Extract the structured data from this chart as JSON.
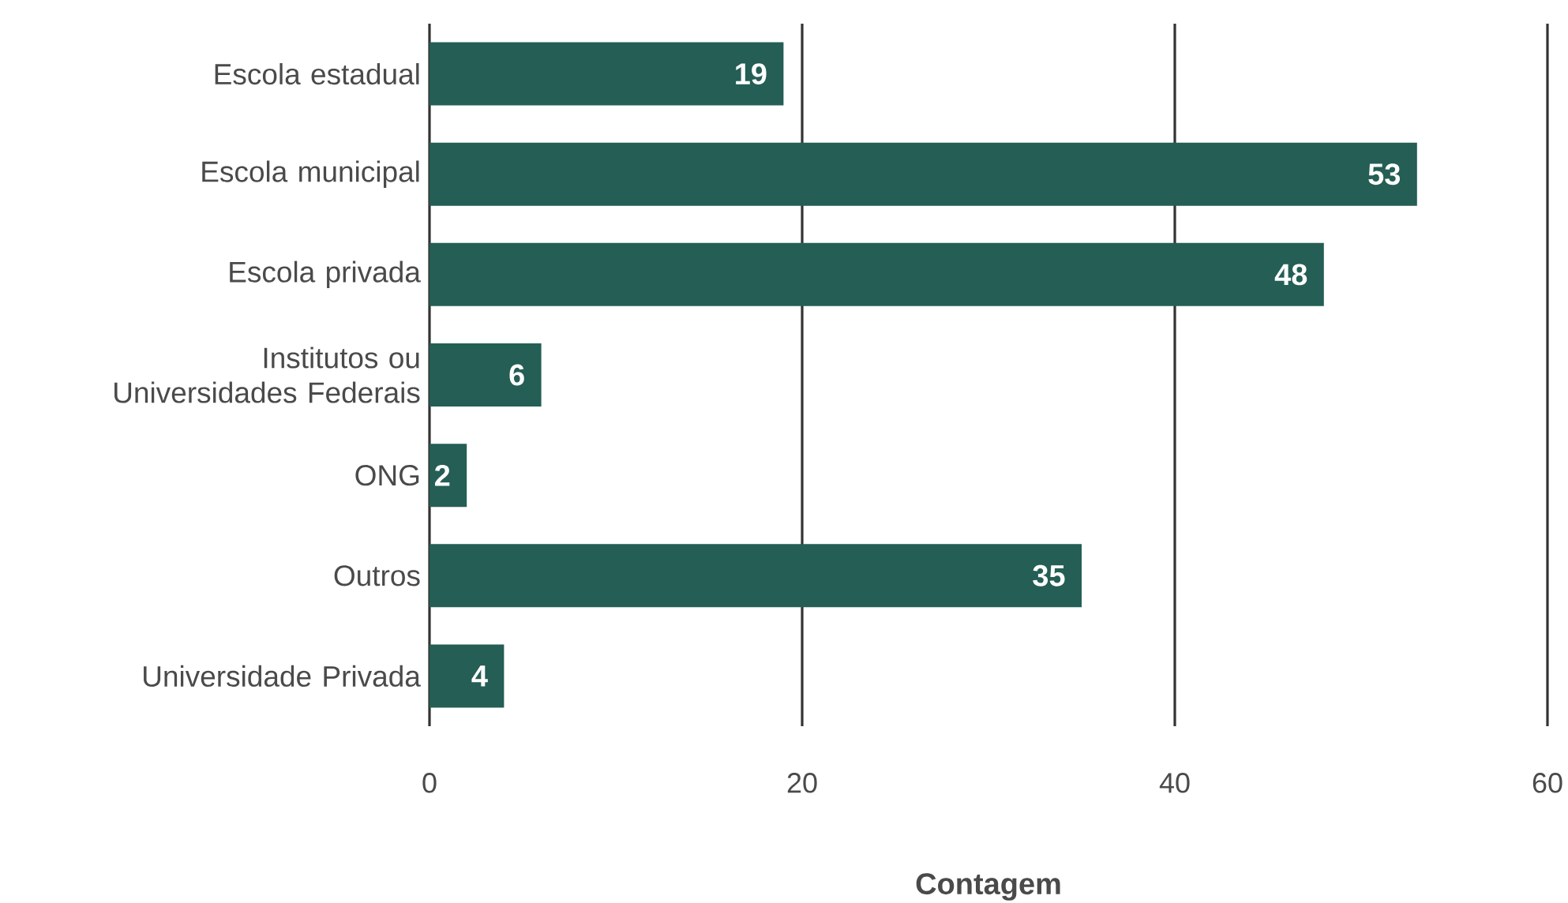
{
  "chart_data": {
    "type": "bar",
    "orientation": "horizontal",
    "xlabel": "Contagem",
    "categories": [
      "Escola estadual",
      "Escola municipal",
      "Escola privada",
      "Institutos ou Universidades Federais",
      "ONG",
      "Outros",
      "Universidade Privada"
    ],
    "values": [
      19,
      53,
      48,
      6,
      2,
      35,
      4
    ],
    "color": "#245e55",
    "xlim": [
      0,
      60
    ],
    "xticks": [
      0,
      20,
      40,
      60
    ],
    "grid": "x",
    "data_labels": true
  }
}
